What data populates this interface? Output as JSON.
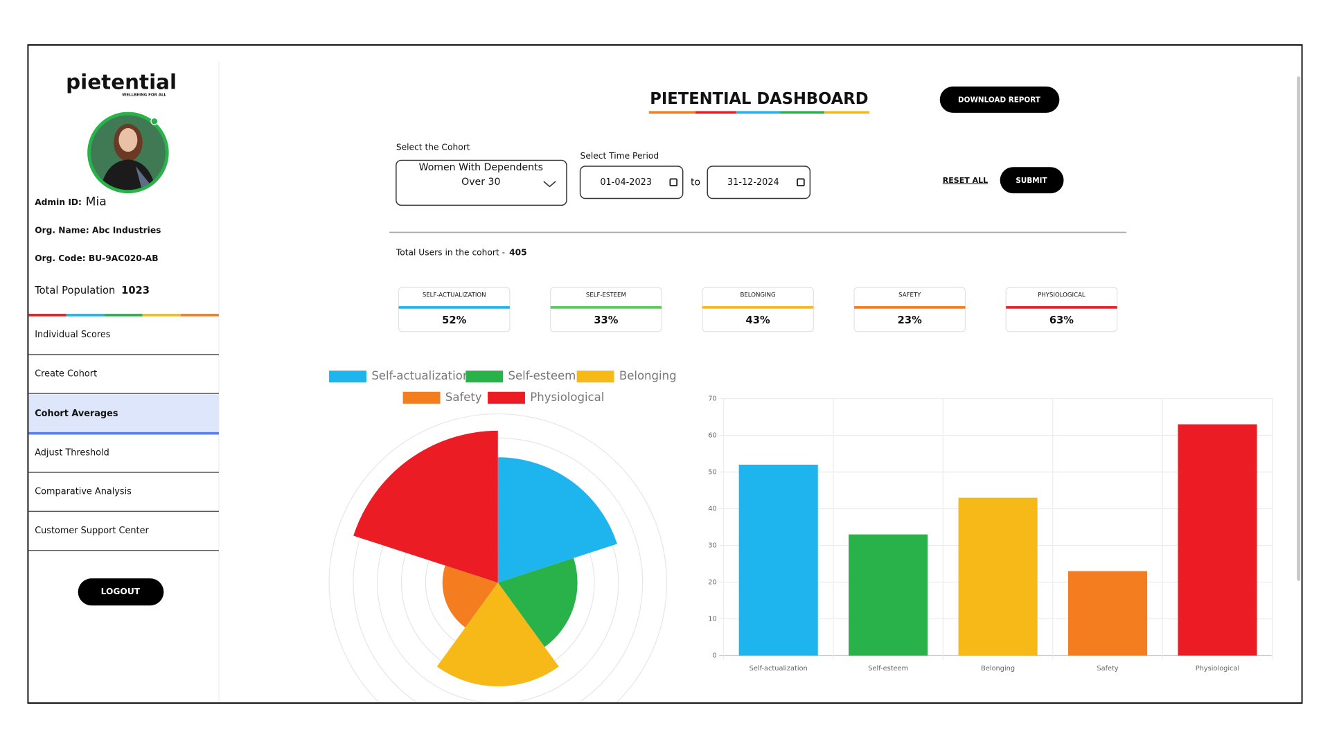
{
  "sidebar": {
    "logo": "pietential",
    "tagline": "WELLBEING FOR ALL",
    "admin_id_label": "Admin ID:",
    "admin_id": "Mia",
    "org_name": "Org. Name: Abc Industries",
    "org_code": "Org. Code: BU-9AC020-AB",
    "total_population_label": "Total Population",
    "total_population": 1023,
    "menu": [
      "Individual Scores",
      "Create Cohort",
      "Cohort Averages",
      "Adjust Threshold",
      "Comparative Analysis",
      "Customer Support Center"
    ],
    "active_menu": 2,
    "logout": "LOGOUT"
  },
  "header": {
    "title": "PIETENTIAL  DASHBOARD",
    "download": "DOWNLOAD REPORT"
  },
  "filters": {
    "cohort_label": "Select the Cohort",
    "cohort": "Women With Dependents Over 30",
    "period_label": "Select Time Period",
    "from": "01-04-2023",
    "to_label": "to",
    "to": "31-12-2024",
    "reset": "RESET ALL",
    "submit": "SUBMIT"
  },
  "summary": {
    "total_users_label": "Total Users in the cohort -",
    "total_users": 405
  },
  "cards": [
    {
      "label": "SELF-ACTUALIZATION",
      "value": "52%",
      "color": "#1fb5ef"
    },
    {
      "label": "SELF-ESTEEM",
      "value": "33%",
      "color": "#5cc85c"
    },
    {
      "label": "BELONGING",
      "value": "43%",
      "color": "#f5b821"
    },
    {
      "label": "SAFETY",
      "value": "23%",
      "color": "#f47c20"
    },
    {
      "label": "PHYSIOLOGICAL",
      "value": "63%",
      "color": "#e8202a"
    }
  ],
  "chart_data": [
    {
      "type": "polarArea",
      "categories": [
        "Self-actualization",
        "Self-esteem",
        "Belonging",
        "Safety",
        "Physiological"
      ],
      "values": [
        52,
        33,
        43,
        23,
        63
      ],
      "colors": [
        "#1eb4ee",
        "#2ab24a",
        "#f6b918",
        "#f47d20",
        "#ec1c24"
      ],
      "rlim": [
        0,
        70
      ],
      "rticks": [
        10,
        20,
        30,
        40,
        50,
        60,
        70
      ],
      "legend": "top"
    },
    {
      "type": "bar",
      "categories": [
        "Self-actualization",
        "Self-esteem",
        "Belonging",
        "Safety",
        "Physiological"
      ],
      "values": [
        52,
        33,
        43,
        23,
        63
      ],
      "colors": [
        "#1eb4ee",
        "#2ab24a",
        "#f6b918",
        "#f47d20",
        "#ec1c24"
      ],
      "ylim": [
        0,
        70
      ],
      "yticks": [
        0,
        10,
        20,
        30,
        40,
        50,
        60,
        70
      ],
      "grid": true
    }
  ]
}
